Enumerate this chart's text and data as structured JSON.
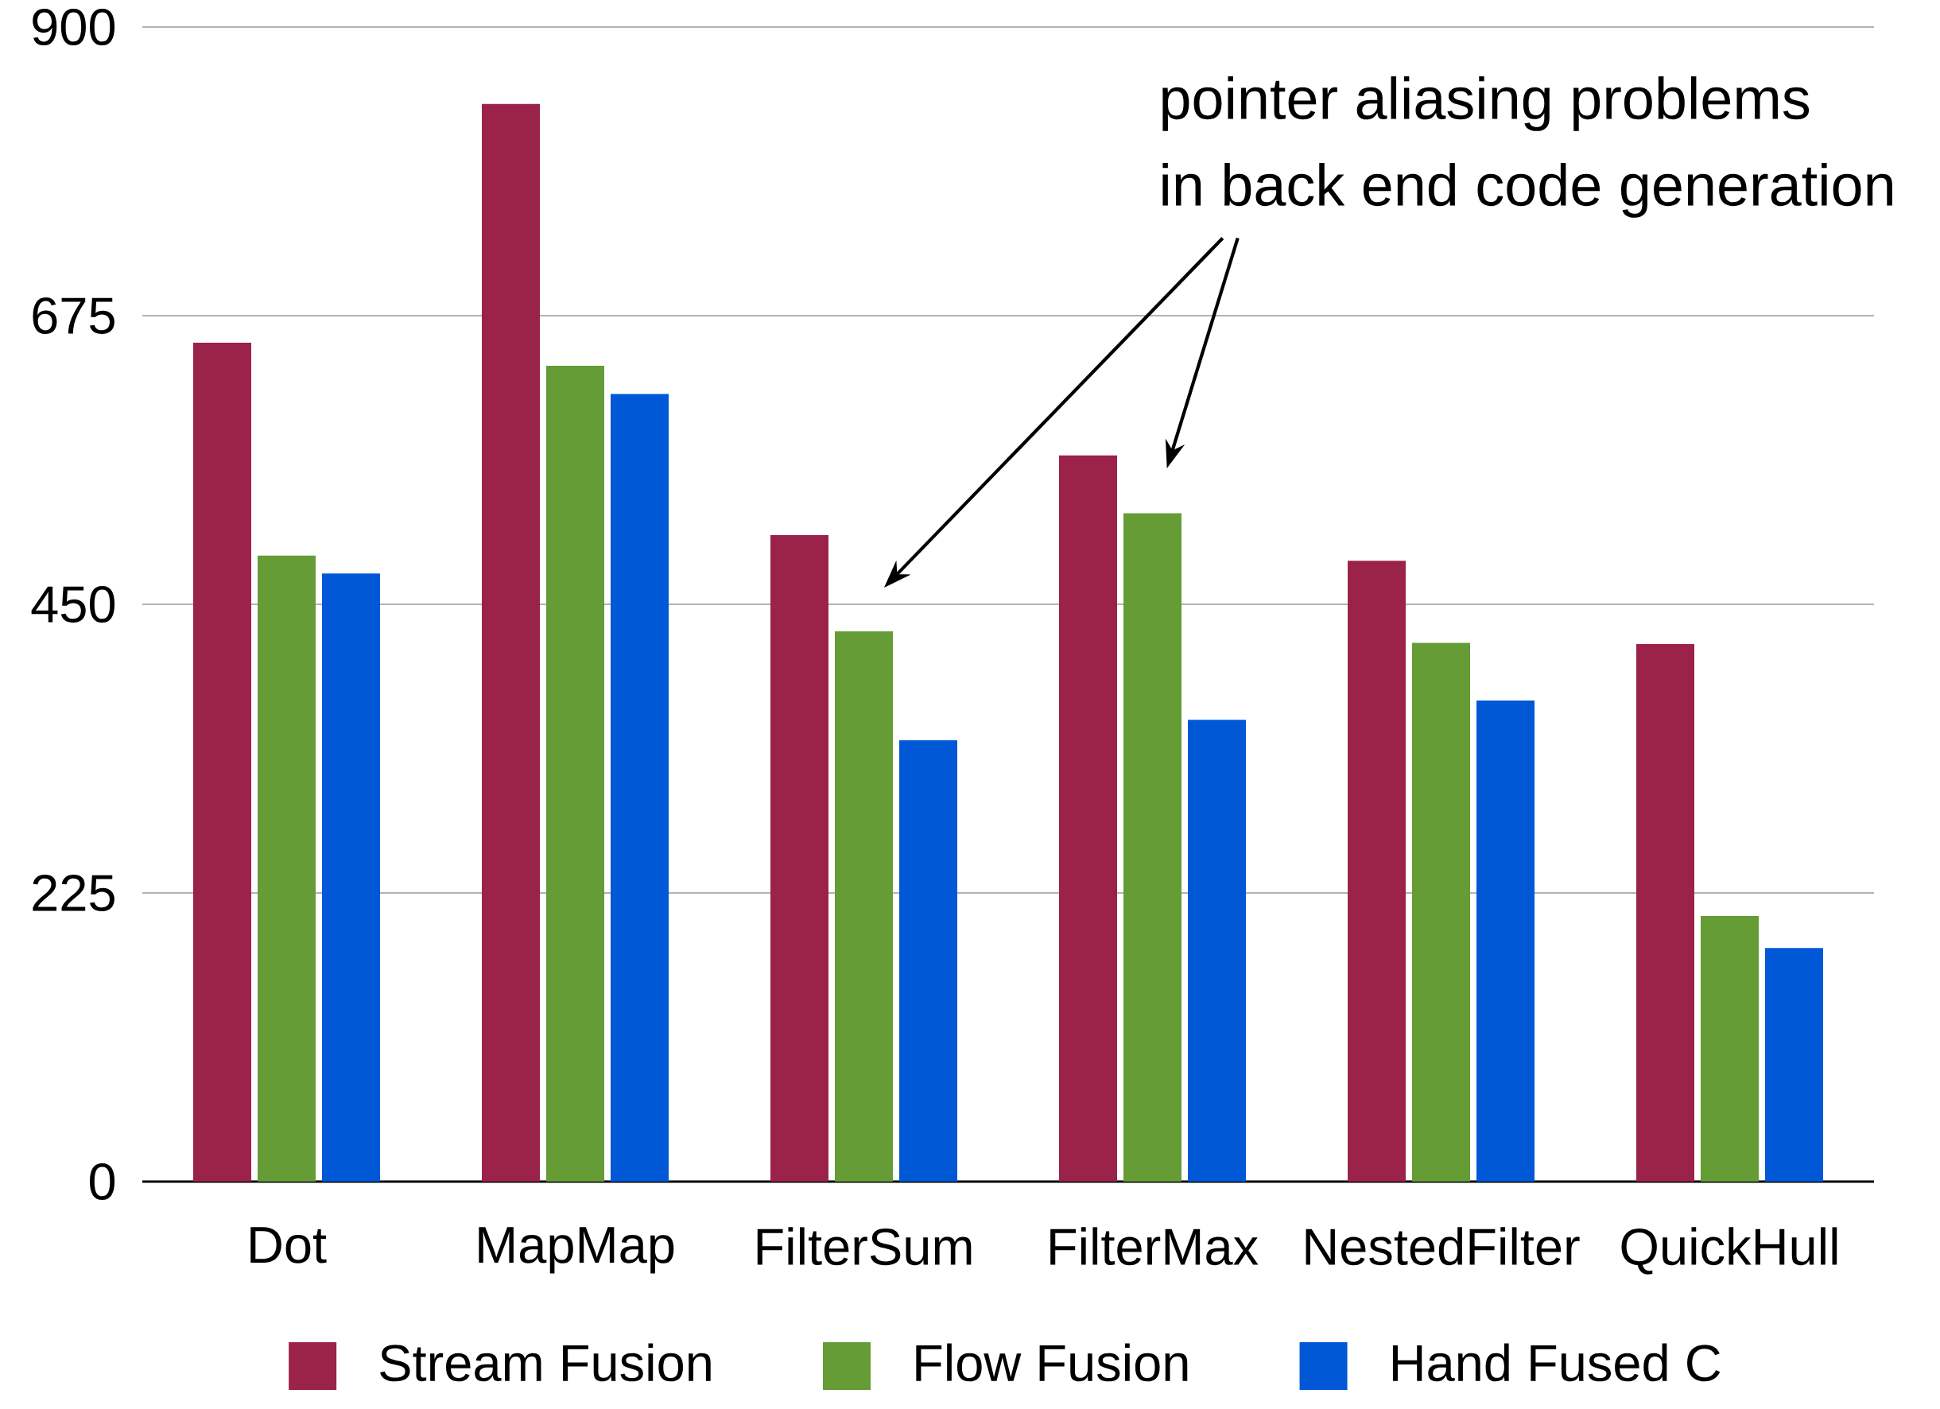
{
  "chart_data": {
    "type": "bar",
    "categories": [
      "Dot",
      "MapMap",
      "FilterSum",
      "FilterMax",
      "NestedFilter",
      "QuickHull"
    ],
    "series": [
      {
        "name": "Stream Fusion",
        "color": "#9b2249",
        "values": [
          654,
          840,
          504,
          566,
          484,
          419
        ]
      },
      {
        "name": "Flow Fusion",
        "color": "#659c35",
        "values": [
          488,
          636,
          429,
          521,
          420,
          207
        ]
      },
      {
        "name": "Hand Fused C",
        "color": "#0058d6",
        "values": [
          474,
          614,
          344,
          360,
          375,
          182
        ]
      }
    ],
    "ylim": [
      0,
      900
    ],
    "yticks": [
      0,
      225,
      450,
      675,
      900
    ],
    "grid": "y",
    "legend": "bottom",
    "annotations": [
      "pointer aliasing problems\nin back end code generation"
    ]
  }
}
